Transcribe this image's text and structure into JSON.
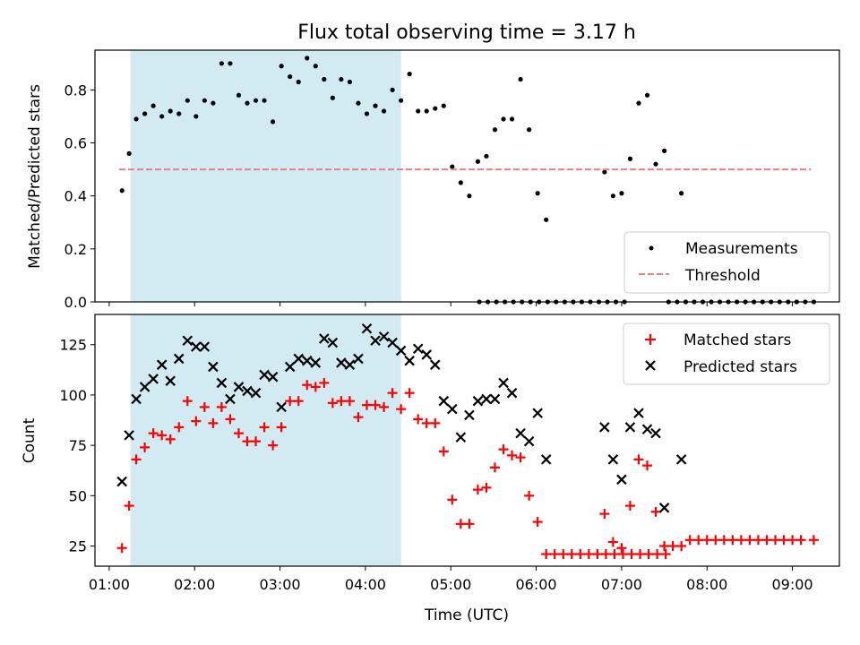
{
  "chart_data": [
    {
      "type": "scatter",
      "title": "Flux total observing time = 3.17 h",
      "xlabel": "",
      "ylabel": "Matched/Predicted stars",
      "ylim": [
        0,
        0.95
      ],
      "yticks": [
        0.0,
        0.2,
        0.4,
        0.6,
        0.8
      ],
      "ytick_labels": [
        "0.0",
        "0.2",
        "0.4",
        "0.6",
        "0.8"
      ],
      "xlim": [
        "00:50",
        "09:33"
      ],
      "shaded_span": [
        "01:15",
        "04:25"
      ],
      "shaded_color": "#add8e6",
      "legend_position": "lower right",
      "series": [
        {
          "name": "Measurements",
          "marker": "dot",
          "color": "#000000",
          "points": [
            [
              "01:09",
              0.42
            ],
            [
              "01:14",
              0.56
            ],
            [
              "01:19",
              0.69
            ],
            [
              "01:25",
              0.71
            ],
            [
              "01:31",
              0.74
            ],
            [
              "01:37",
              0.7
            ],
            [
              "01:43",
              0.72
            ],
            [
              "01:49",
              0.71
            ],
            [
              "01:55",
              0.76
            ],
            [
              "02:01",
              0.7
            ],
            [
              "02:07",
              0.76
            ],
            [
              "02:13",
              0.75
            ],
            [
              "02:19",
              0.9
            ],
            [
              "02:25",
              0.9
            ],
            [
              "02:31",
              0.78
            ],
            [
              "02:37",
              0.75
            ],
            [
              "02:43",
              0.76
            ],
            [
              "02:49",
              0.76
            ],
            [
              "02:55",
              0.68
            ],
            [
              "03:01",
              0.89
            ],
            [
              "03:07",
              0.85
            ],
            [
              "03:13",
              0.83
            ],
            [
              "03:19",
              0.92
            ],
            [
              "03:25",
              0.89
            ],
            [
              "03:31",
              0.84
            ],
            [
              "03:37",
              0.77
            ],
            [
              "03:43",
              0.84
            ],
            [
              "03:49",
              0.83
            ],
            [
              "03:55",
              0.75
            ],
            [
              "04:01",
              0.71
            ],
            [
              "04:07",
              0.74
            ],
            [
              "04:13",
              0.72
            ],
            [
              "04:19",
              0.8
            ],
            [
              "04:25",
              0.76
            ],
            [
              "04:31",
              0.86
            ],
            [
              "04:37",
              0.72
            ],
            [
              "04:43",
              0.72
            ],
            [
              "04:49",
              0.73
            ],
            [
              "04:55",
              0.74
            ],
            [
              "05:01",
              0.51
            ],
            [
              "05:07",
              0.45
            ],
            [
              "05:13",
              0.4
            ],
            [
              "05:19",
              0.53
            ],
            [
              "05:25",
              0.55
            ],
            [
              "05:31",
              0.65
            ],
            [
              "05:37",
              0.69
            ],
            [
              "05:43",
              0.69
            ],
            [
              "05:49",
              0.84
            ],
            [
              "05:55",
              0.65
            ],
            [
              "06:01",
              0.41
            ],
            [
              "06:07",
              0.31
            ],
            [
              "05:20",
              0.0
            ],
            [
              "05:26",
              0.0
            ],
            [
              "05:32",
              0.0
            ],
            [
              "05:38",
              0.0
            ],
            [
              "05:44",
              0.0
            ],
            [
              "05:50",
              0.0
            ],
            [
              "05:56",
              0.0
            ],
            [
              "06:02",
              0.0
            ],
            [
              "06:08",
              0.0
            ],
            [
              "06:14",
              0.0
            ],
            [
              "06:20",
              0.0
            ],
            [
              "06:26",
              0.0
            ],
            [
              "06:32",
              0.0
            ],
            [
              "06:38",
              0.0
            ],
            [
              "06:44",
              0.0
            ],
            [
              "06:50",
              0.0
            ],
            [
              "06:56",
              0.0
            ],
            [
              "07:02",
              0.0
            ],
            [
              "06:48",
              0.49
            ],
            [
              "06:54",
              0.4
            ],
            [
              "07:00",
              0.41
            ],
            [
              "07:06",
              0.54
            ],
            [
              "07:12",
              0.75
            ],
            [
              "07:18",
              0.78
            ],
            [
              "07:24",
              0.52
            ],
            [
              "07:30",
              0.57
            ],
            [
              "07:42",
              0.41
            ],
            [
              "07:33",
              0.0
            ],
            [
              "07:39",
              0.0
            ],
            [
              "07:45",
              0.0
            ],
            [
              "07:51",
              0.0
            ],
            [
              "07:57",
              0.0
            ],
            [
              "08:03",
              0.0
            ],
            [
              "08:09",
              0.0
            ],
            [
              "08:15",
              0.0
            ],
            [
              "08:21",
              0.0
            ],
            [
              "08:27",
              0.0
            ],
            [
              "08:33",
              0.0
            ],
            [
              "08:39",
              0.0
            ],
            [
              "08:45",
              0.0
            ],
            [
              "08:51",
              0.0
            ],
            [
              "08:57",
              0.0
            ],
            [
              "09:03",
              0.0
            ],
            [
              "09:09",
              0.0
            ],
            [
              "09:15",
              0.0
            ]
          ]
        },
        {
          "name": "Threshold",
          "marker": "dashed-line",
          "color": "#f08080",
          "points": [
            [
              "01:07",
              0.5
            ],
            [
              "09:13",
              0.5
            ]
          ]
        }
      ]
    },
    {
      "type": "scatter",
      "title": "",
      "xlabel": "Time (UTC)",
      "ylabel": "Count",
      "ylim": [
        15,
        140
      ],
      "yticks": [
        25,
        50,
        75,
        100,
        125
      ],
      "ytick_labels": [
        "25",
        "50",
        "75",
        "100",
        "125"
      ],
      "xlim": [
        "00:50",
        "09:33"
      ],
      "xticks": [
        "01:00",
        "02:00",
        "03:00",
        "04:00",
        "05:00",
        "06:00",
        "07:00",
        "08:00",
        "09:00"
      ],
      "xtick_labels": [
        "01:00",
        "02:00",
        "03:00",
        "04:00",
        "05:00",
        "06:00",
        "07:00",
        "08:00",
        "09:00"
      ],
      "shaded_span": [
        "01:15",
        "04:25"
      ],
      "shaded_color": "#add8e6",
      "legend_position": "upper right",
      "series": [
        {
          "name": "Matched stars",
          "marker": "plus",
          "color": "#ff0000",
          "points": [
            [
              "01:09",
              24
            ],
            [
              "01:14",
              45
            ],
            [
              "01:19",
              68
            ],
            [
              "01:25",
              74
            ],
            [
              "01:31",
              81
            ],
            [
              "01:37",
              80
            ],
            [
              "01:43",
              78
            ],
            [
              "01:49",
              84
            ],
            [
              "01:55",
              97
            ],
            [
              "02:01",
              87
            ],
            [
              "02:07",
              94
            ],
            [
              "02:13",
              86
            ],
            [
              "02:19",
              94
            ],
            [
              "02:25",
              88
            ],
            [
              "02:31",
              81
            ],
            [
              "02:37",
              77
            ],
            [
              "02:43",
              77
            ],
            [
              "02:49",
              84
            ],
            [
              "02:55",
              75
            ],
            [
              "03:01",
              84
            ],
            [
              "03:07",
              97
            ],
            [
              "03:13",
              97
            ],
            [
              "03:19",
              105
            ],
            [
              "03:25",
              104
            ],
            [
              "03:31",
              106
            ],
            [
              "03:37",
              96
            ],
            [
              "03:43",
              97
            ],
            [
              "03:49",
              97
            ],
            [
              "03:55",
              89
            ],
            [
              "04:01",
              95
            ],
            [
              "04:07",
              95
            ],
            [
              "04:13",
              94
            ],
            [
              "04:19",
              101
            ],
            [
              "04:25",
              93
            ],
            [
              "04:31",
              101
            ],
            [
              "04:37",
              88
            ],
            [
              "04:43",
              86
            ],
            [
              "04:49",
              86
            ],
            [
              "04:55",
              72
            ],
            [
              "05:01",
              48
            ],
            [
              "05:07",
              36
            ],
            [
              "05:13",
              36
            ],
            [
              "05:19",
              53
            ],
            [
              "05:25",
              54
            ],
            [
              "05:31",
              64
            ],
            [
              "05:37",
              73
            ],
            [
              "05:43",
              70
            ],
            [
              "05:49",
              69
            ],
            [
              "05:55",
              50
            ],
            [
              "06:01",
              37
            ],
            [
              "06:07",
              21
            ],
            [
              "06:13",
              21
            ],
            [
              "06:19",
              21
            ],
            [
              "06:25",
              21
            ],
            [
              "06:31",
              21
            ],
            [
              "06:37",
              21
            ],
            [
              "06:43",
              21
            ],
            [
              "06:49",
              21
            ],
            [
              "06:55",
              21
            ],
            [
              "07:01",
              21
            ],
            [
              "07:07",
              21
            ],
            [
              "07:13",
              21
            ],
            [
              "07:19",
              21
            ],
            [
              "07:25",
              21
            ],
            [
              "07:31",
              21
            ],
            [
              "06:48",
              41
            ],
            [
              "06:54",
              27
            ],
            [
              "07:00",
              24
            ],
            [
              "07:06",
              45
            ],
            [
              "07:12",
              68
            ],
            [
              "07:18",
              65
            ],
            [
              "07:24",
              42
            ],
            [
              "07:30",
              25
            ],
            [
              "07:36",
              25
            ],
            [
              "07:42",
              25
            ],
            [
              "07:48",
              28
            ],
            [
              "07:54",
              28
            ],
            [
              "08:00",
              28
            ],
            [
              "08:06",
              28
            ],
            [
              "08:12",
              28
            ],
            [
              "08:18",
              28
            ],
            [
              "08:24",
              28
            ],
            [
              "08:30",
              28
            ],
            [
              "08:36",
              28
            ],
            [
              "08:42",
              28
            ],
            [
              "08:48",
              28
            ],
            [
              "08:54",
              28
            ],
            [
              "09:00",
              28
            ],
            [
              "09:06",
              28
            ],
            [
              "09:15",
              28
            ]
          ]
        },
        {
          "name": "Predicted stars",
          "marker": "x",
          "color": "#000000",
          "points": [
            [
              "01:09",
              57
            ],
            [
              "01:14",
              80
            ],
            [
              "01:19",
              98
            ],
            [
              "01:25",
              104
            ],
            [
              "01:31",
              108
            ],
            [
              "01:37",
              115
            ],
            [
              "01:43",
              107
            ],
            [
              "01:49",
              118
            ],
            [
              "01:55",
              127
            ],
            [
              "02:01",
              124
            ],
            [
              "02:07",
              124
            ],
            [
              "02:13",
              114
            ],
            [
              "02:19",
              106
            ],
            [
              "02:25",
              98
            ],
            [
              "02:31",
              104
            ],
            [
              "02:37",
              102
            ],
            [
              "02:43",
              101
            ],
            [
              "02:49",
              110
            ],
            [
              "02:55",
              109
            ],
            [
              "03:01",
              94
            ],
            [
              "03:07",
              114
            ],
            [
              "03:13",
              118
            ],
            [
              "03:19",
              117
            ],
            [
              "03:25",
              116
            ],
            [
              "03:31",
              128
            ],
            [
              "03:37",
              126
            ],
            [
              "03:43",
              116
            ],
            [
              "03:49",
              115
            ],
            [
              "03:55",
              118
            ],
            [
              "04:01",
              133
            ],
            [
              "04:07",
              127
            ],
            [
              "04:13",
              129
            ],
            [
              "04:19",
              126
            ],
            [
              "04:25",
              122
            ],
            [
              "04:31",
              117
            ],
            [
              "04:37",
              123
            ],
            [
              "04:43",
              120
            ],
            [
              "04:49",
              115
            ],
            [
              "04:55",
              97
            ],
            [
              "05:01",
              93
            ],
            [
              "05:07",
              79
            ],
            [
              "05:13",
              90
            ],
            [
              "05:19",
              97
            ],
            [
              "05:25",
              98
            ],
            [
              "05:31",
              98
            ],
            [
              "05:37",
              106
            ],
            [
              "05:43",
              101
            ],
            [
              "05:49",
              81
            ],
            [
              "05:55",
              77
            ],
            [
              "06:01",
              91
            ],
            [
              "06:07",
              68
            ],
            [
              "06:48",
              84
            ],
            [
              "06:54",
              68
            ],
            [
              "07:00",
              58
            ],
            [
              "07:06",
              84
            ],
            [
              "07:12",
              91
            ],
            [
              "07:18",
              83
            ],
            [
              "07:24",
              81
            ],
            [
              "07:30",
              44
            ],
            [
              "07:42",
              68
            ]
          ]
        }
      ]
    }
  ]
}
